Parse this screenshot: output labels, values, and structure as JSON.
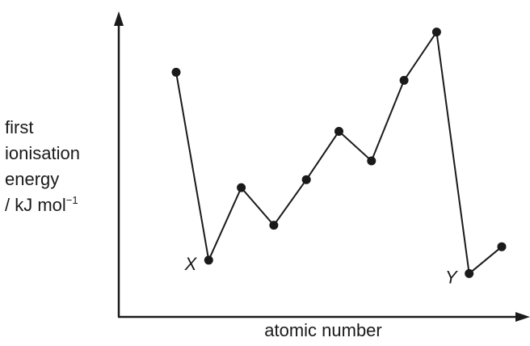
{
  "chart_data": {
    "type": "line",
    "xlabel": "atomic number",
    "ylabel": {
      "lines": [
        "first",
        "ionisation",
        "energy"
      ],
      "unit_main": "/ kJ mol",
      "unit_sup": "−1"
    },
    "x": [
      1,
      2,
      3,
      4,
      5,
      6,
      7,
      8,
      9,
      10,
      11
    ],
    "values": [
      80,
      10,
      37,
      23,
      40,
      58,
      47,
      77,
      95,
      5,
      15
    ],
    "point_labels": [
      {
        "index": 1,
        "text": "X"
      },
      {
        "index": 9,
        "text": "Y"
      }
    ],
    "axis_ticks": false,
    "grid": false,
    "ylim": [
      0,
      100
    ],
    "colors": {
      "line": "#1a1a1a",
      "marker": "#1a1a1a"
    }
  }
}
